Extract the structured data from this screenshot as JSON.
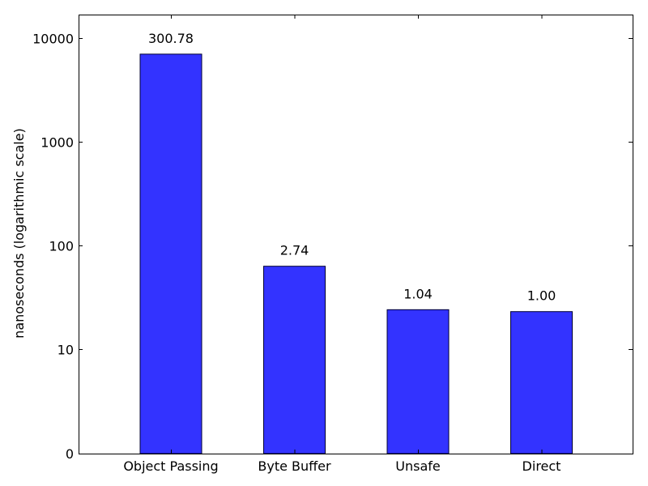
{
  "chart_data": {
    "type": "bar",
    "title": "",
    "xlabel": "",
    "ylabel": "nanoseconds (logarithmic scale)",
    "yscale": "log",
    "ylim": [
      1,
      16000
    ],
    "y_ticks": [
      {
        "value": 10,
        "label": "10"
      },
      {
        "value": 100,
        "label": "100"
      },
      {
        "value": 1000,
        "label": "1000"
      },
      {
        "value": 10000,
        "label": "10000"
      }
    ],
    "y_bottom_label": "0",
    "categories": [
      "Object Passing",
      "Byte Buffer",
      "Unsafe",
      "Direct"
    ],
    "values": [
      7000,
      63,
      24,
      23
    ],
    "data_labels": [
      "300.78",
      "2.74",
      "1.04",
      "1.00"
    ],
    "bar_color": "#3333ff",
    "grid": false,
    "legend": "none"
  }
}
